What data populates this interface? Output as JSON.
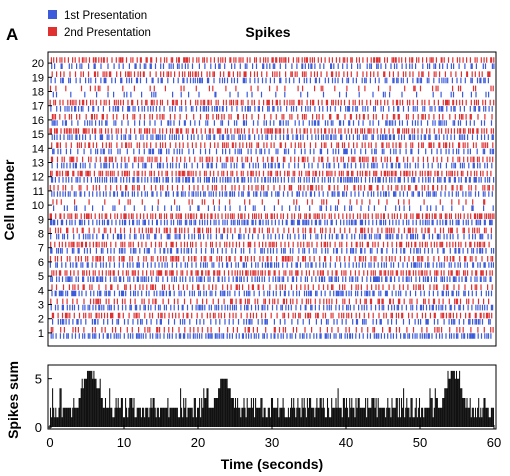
{
  "chart_data": [
    {
      "panel_label": "A",
      "type": "raster",
      "title": "Spikes",
      "ylabel": "Cell number",
      "xlim": [
        0,
        60
      ],
      "yticks": [
        "1",
        "2",
        "3",
        "4",
        "5",
        "6",
        "7",
        "8",
        "9",
        "10",
        "11",
        "12",
        "13",
        "14",
        "15",
        "16",
        "17",
        "18",
        "19",
        "20"
      ],
      "legend": {
        "placement": "top-left",
        "entries": [
          {
            "label": "1st Presentation",
            "color": "#3b5bdb"
          },
          {
            "label": "2nd Presentation",
            "color": "#e03131"
          }
        ]
      },
      "cells": [
        {
          "cell": 1,
          "first_rate": 0.9,
          "second_rate": 0.4
        },
        {
          "cell": 2,
          "first_rate": 0.5,
          "second_rate": 0.6
        },
        {
          "cell": 3,
          "first_rate": 0.8,
          "second_rate": 0.5
        },
        {
          "cell": 4,
          "first_rate": 0.7,
          "second_rate": 0.5
        },
        {
          "cell": 5,
          "first_rate": 0.8,
          "second_rate": 0.8
        },
        {
          "cell": 6,
          "first_rate": 0.7,
          "second_rate": 0.6
        },
        {
          "cell": 7,
          "first_rate": 0.6,
          "second_rate": 0.7
        },
        {
          "cell": 8,
          "first_rate": 0.6,
          "second_rate": 0.6
        },
        {
          "cell": 9,
          "first_rate": 0.9,
          "second_rate": 0.9
        },
        {
          "cell": 10,
          "first_rate": 0.3,
          "second_rate": 0.2
        },
        {
          "cell": 11,
          "first_rate": 0.8,
          "second_rate": 0.5
        },
        {
          "cell": 12,
          "first_rate": 0.9,
          "second_rate": 0.8
        },
        {
          "cell": 13,
          "first_rate": 0.6,
          "second_rate": 0.6
        },
        {
          "cell": 14,
          "first_rate": 0.5,
          "second_rate": 0.6
        },
        {
          "cell": 15,
          "first_rate": 0.7,
          "second_rate": 0.8
        },
        {
          "cell": 16,
          "first_rate": 0.5,
          "second_rate": 0.5
        },
        {
          "cell": 17,
          "first_rate": 0.6,
          "second_rate": 0.7
        },
        {
          "cell": 18,
          "first_rate": 0.2,
          "second_rate": 0.2
        },
        {
          "cell": 19,
          "first_rate": 0.6,
          "second_rate": 0.6
        },
        {
          "cell": 20,
          "first_rate": 0.5,
          "second_rate": 0.8
        }
      ]
    },
    {
      "type": "bar",
      "ylabel": "Spikes sum",
      "xlabel": "Time (seconds)",
      "xlim": [
        0,
        60
      ],
      "ylim": [
        0,
        6
      ],
      "xticks": [
        "0",
        "10",
        "20",
        "30",
        "40",
        "50",
        "60"
      ],
      "yticks": [
        "0",
        "5"
      ],
      "peaks": [
        {
          "x": 5.5,
          "value": 6
        },
        {
          "x": 23.5,
          "value": 5
        },
        {
          "x": 54.5,
          "value": 6
        }
      ],
      "baseline": 1.5
    }
  ]
}
